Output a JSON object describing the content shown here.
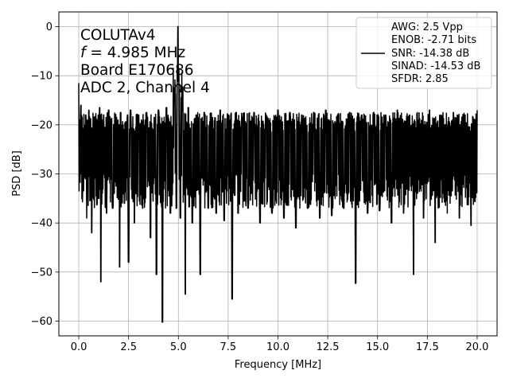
{
  "chart_data": {
    "type": "line",
    "xlabel": "Frequency [MHz]",
    "ylabel": "PSD [dB]",
    "xlim": [
      -1.0,
      21.0
    ],
    "ylim": [
      -63.0,
      3.0
    ],
    "xticks": [
      0.0,
      2.5,
      5.0,
      7.5,
      10.0,
      12.5,
      15.0,
      17.5,
      20.0
    ],
    "xtick_labels": [
      "0.0",
      "2.5",
      "5.0",
      "7.5",
      "10.0",
      "12.5",
      "15.0",
      "17.5",
      "20.0"
    ],
    "yticks": [
      0,
      -10,
      -20,
      -30,
      -40,
      -50,
      -60
    ],
    "ytick_labels": [
      "0",
      "−10",
      "−20",
      "−30",
      "−40",
      "−50",
      "−60"
    ],
    "grid": true,
    "annotation_lines": [
      "COLUTAv4",
      "f = 4.985 MHz",
      "Board E170686",
      "ADC 2, Channel 4"
    ],
    "legend": {
      "placement": "top-right",
      "lines": [
        "AWG: 2.5 Vpp",
        "ENOB: -2.71 bits",
        "SNR: -14.38 dB",
        "SINAD: -14.53 dB",
        "SFDR: 2.85"
      ]
    },
    "line_color": "#000000",
    "series": [
      {
        "x": [
          0.0,
          0.05,
          0.1,
          0.2,
          0.35,
          0.4,
          0.5,
          0.65,
          0.8,
          1.0,
          1.05,
          1.1,
          1.25,
          1.4,
          1.5,
          1.7,
          1.9,
          2.05,
          2.1,
          2.3,
          2.45,
          2.5,
          2.6,
          2.8,
          3.0,
          3.2,
          3.4,
          3.6,
          3.8,
          3.9,
          4.0,
          4.2,
          4.4,
          4.6,
          4.8,
          4.9,
          4.95,
          4.985,
          5.02,
          5.1,
          5.2,
          5.35,
          5.5,
          5.7,
          5.9,
          6.1,
          6.3,
          6.5,
          6.7,
          6.9,
          7.1,
          7.3,
          7.5,
          7.7,
          7.9,
          8.0,
          8.2,
          8.5,
          8.8,
          9.1,
          9.4,
          9.7,
          10.0,
          10.3,
          10.6,
          10.9,
          11.2,
          11.5,
          11.8,
          12.1,
          12.4,
          12.7,
          13.0,
          13.3,
          13.6,
          13.9,
          14.2,
          14.5,
          14.8,
          15.1,
          15.4,
          15.7,
          16.0,
          16.3,
          16.6,
          16.8,
          17.0,
          17.3,
          17.6,
          17.9,
          18.2,
          18.5,
          18.8,
          19.1,
          19.4,
          19.7,
          20.0
        ],
        "y": [
          -11.5,
          -28.0,
          -16.0,
          -32.0,
          -18.0,
          -39.0,
          -17.0,
          -42.0,
          -19.0,
          -35.0,
          -16.5,
          -52.0,
          -18.0,
          -38.0,
          -17.0,
          -37.0,
          -18.5,
          -49.0,
          -17.5,
          -36.0,
          -18.0,
          -48.0,
          -17.0,
          -40.0,
          -18.0,
          -37.0,
          -17.5,
          -43.0,
          -18.5,
          -50.5,
          -17.0,
          -60.2,
          -16.5,
          -38.0,
          -15.5,
          -37.0,
          -8.0,
          0.0,
          -8.5,
          -39.0,
          -17.0,
          -54.5,
          -16.5,
          -40.0,
          -18.0,
          -50.5,
          -17.5,
          -37.0,
          -18.5,
          -38.0,
          -17.0,
          -39.5,
          -18.0,
          -55.5,
          -17.5,
          -38.0,
          -18.5,
          -37.0,
          -17.5,
          -40.0,
          -18.0,
          -38.0,
          -17.0,
          -39.0,
          -17.5,
          -41.0,
          -18.0,
          -37.0,
          -17.5,
          -39.0,
          -17.0,
          -38.5,
          -18.0,
          -37.0,
          -17.5,
          -52.3,
          -18.0,
          -38.0,
          -17.5,
          -37.5,
          -18.0,
          -40.0,
          -17.0,
          -38.0,
          -18.0,
          -50.5,
          -17.5,
          -39.0,
          -17.0,
          -44.0,
          -18.0,
          -38.0,
          -17.5,
          -39.0,
          -18.0,
          -40.5,
          -17.0
        ]
      }
    ]
  }
}
